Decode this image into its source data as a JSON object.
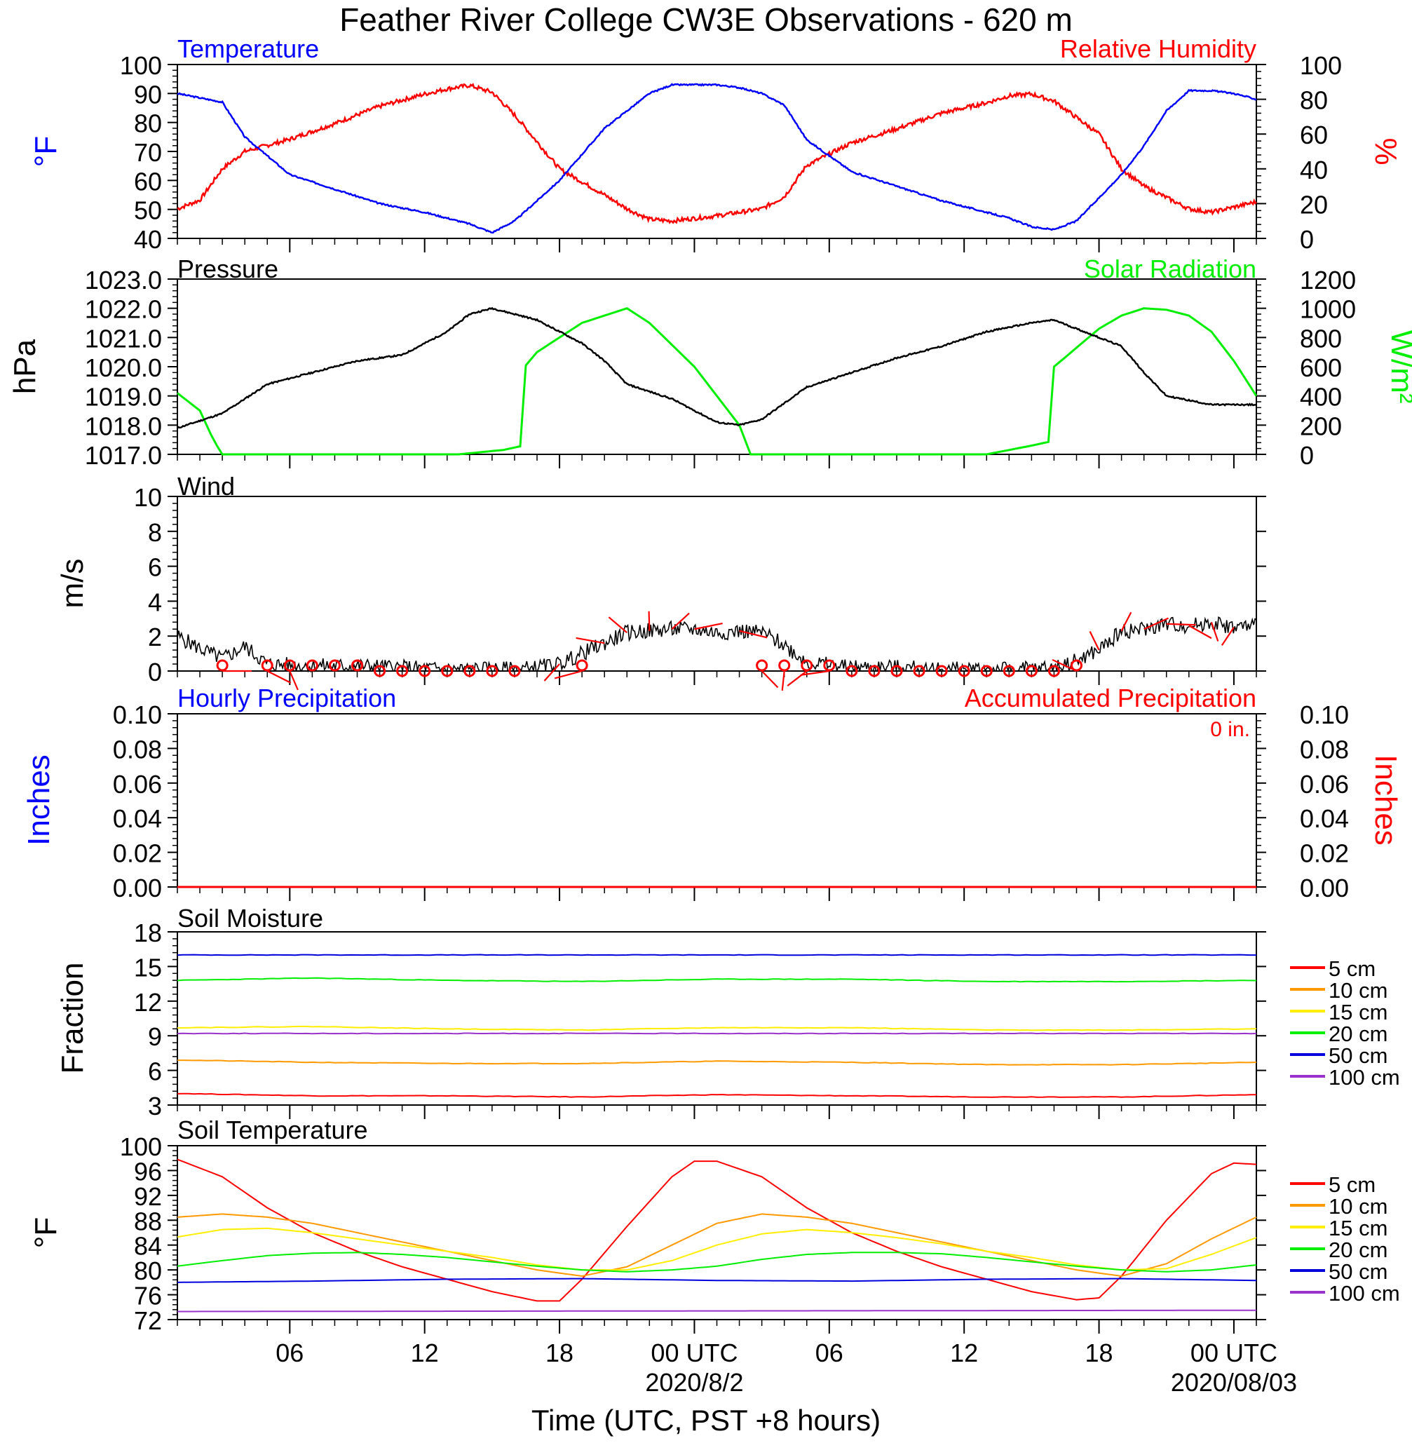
{
  "title": "Feather River College CW3E Observations - 620 m",
  "xlabel": "Time (UTC, PST +8 hours)",
  "x_range": [
    "2020-08-01 01:00",
    "2020-08-03 01:00"
  ],
  "x_ticks": [
    {
      "t": "2020-08-01 06:00",
      "label": "06"
    },
    {
      "t": "2020-08-01 12:00",
      "label": "12"
    },
    {
      "t": "2020-08-01 18:00",
      "label": "18"
    },
    {
      "t": "2020-08-02 00:00",
      "label": "00 UTC",
      "date": "2020/8/2"
    },
    {
      "t": "2020-08-02 06:00",
      "label": "06"
    },
    {
      "t": "2020-08-02 12:00",
      "label": "12"
    },
    {
      "t": "2020-08-02 18:00",
      "label": "18"
    },
    {
      "t": "2020-08-03 00:00",
      "label": "00 UTC",
      "date": "2020/08/03"
    }
  ],
  "colors": {
    "temperature": "#0000ff",
    "humidity": "#ff0000",
    "pressure": "#000000",
    "solar": "#00ee00",
    "wind": "#000000",
    "barb": "#ff0000",
    "hourly_precip": "#0000ff",
    "accum_precip": "#ff0000"
  },
  "panels": {
    "temp_rh": {
      "left_title": "Temperature",
      "right_title": "Relative Humidity",
      "left_label": "°F",
      "right_label": "%"
    },
    "pressure_solar": {
      "left_title": "Pressure",
      "right_title": "Solar Radiation",
      "left_label": "hPa",
      "right_label": "W/m²"
    },
    "wind": {
      "left_title": "Wind",
      "left_label": "m/s"
    },
    "precip": {
      "left_title": "Hourly Precipitation",
      "right_title": "Accumulated Precipitation",
      "left_label": "Inches",
      "right_label": "Inches",
      "accum_text": "0 in."
    },
    "soil_moisture": {
      "left_title": "Soil Moisture",
      "left_label": "Fraction"
    },
    "soil_temp": {
      "left_title": "Soil Temperature",
      "left_label": "°F"
    }
  },
  "legend": [
    {
      "label": "5 cm",
      "color": "#ff0000"
    },
    {
      "label": "10 cm",
      "color": "#ff9900"
    },
    {
      "label": "15 cm",
      "color": "#ffee00"
    },
    {
      "label": "20 cm",
      "color": "#00ee00"
    },
    {
      "label": "50 cm",
      "color": "#0000dd"
    },
    {
      "label": "100 cm",
      "color": "#9933cc"
    }
  ],
  "chart_data": [
    {
      "type": "line",
      "title": "Temperature",
      "ylabel": "°F",
      "ylim": [
        40,
        100
      ],
      "yticks": [
        "40",
        "50",
        "60",
        "70",
        "80",
        "90",
        "100"
      ],
      "series": [
        {
          "name": "Temperature",
          "axis": "left",
          "x_hours": [
            0,
            2,
            3,
            5,
            7,
            9,
            11,
            13,
            14,
            15,
            17,
            19,
            21,
            22,
            23,
            24,
            25,
            26,
            27,
            28,
            30,
            32,
            34,
            36,
            37,
            38,
            39,
            40,
            42,
            43,
            44,
            45,
            46,
            47,
            48
          ],
          "values": [
            90,
            87,
            75,
            62,
            57,
            52,
            49,
            45,
            42,
            46,
            60,
            78,
            90,
            93,
            93,
            93,
            92,
            90,
            86,
            74,
            63,
            58,
            53,
            49,
            47,
            44,
            43,
            46,
            62,
            72,
            84,
            91,
            91,
            90,
            88
          ]
        }
      ]
    },
    {
      "type": "line",
      "title": "Relative Humidity",
      "ylabel": "%",
      "ylim": [
        0,
        100
      ],
      "yticks": [
        "0",
        "20",
        "40",
        "60",
        "80",
        "100"
      ],
      "series": [
        {
          "name": "Relative Humidity",
          "axis": "right",
          "x_hours": [
            0,
            1,
            2,
            3,
            5,
            7,
            9,
            11,
            12,
            13,
            14,
            15,
            17,
            19,
            20,
            21,
            22,
            24,
            26,
            27,
            28,
            30,
            32,
            34,
            36,
            37,
            38,
            39,
            41,
            42,
            43,
            45,
            46,
            48
          ],
          "values": [
            17,
            22,
            40,
            50,
            57,
            66,
            76,
            83,
            86,
            88,
            84,
            71,
            40,
            25,
            17,
            11,
            10,
            13,
            17,
            24,
            42,
            55,
            63,
            72,
            78,
            82,
            83,
            79,
            60,
            40,
            30,
            17,
            15,
            21
          ]
        }
      ]
    },
    {
      "type": "line",
      "title": "Pressure",
      "ylabel": "hPa",
      "ylim": [
        1017,
        1023
      ],
      "yticks": [
        "1017.0",
        "1018.0",
        "1019.0",
        "1020.0",
        "1021.0",
        "1022.0",
        "1023.0"
      ],
      "series": [
        {
          "name": "Pressure",
          "axis": "left",
          "x_hours": [
            0,
            2,
            4,
            6,
            8,
            10,
            12,
            13,
            14,
            16,
            18,
            19,
            20,
            22,
            24,
            25,
            26,
            28,
            30,
            32,
            34,
            36,
            38,
            39,
            40,
            42,
            43,
            44,
            46,
            48
          ],
          "values": [
            1017.9,
            1018.4,
            1019.4,
            1019.8,
            1020.2,
            1020.4,
            1021.2,
            1021.8,
            1022.0,
            1021.6,
            1020.8,
            1020.2,
            1019.4,
            1018.9,
            1018.1,
            1018.0,
            1018.2,
            1019.3,
            1019.8,
            1020.3,
            1020.7,
            1021.2,
            1021.5,
            1021.6,
            1021.3,
            1020.7,
            1019.8,
            1019.0,
            1018.7,
            1018.7
          ]
        }
      ]
    },
    {
      "type": "line",
      "title": "Solar Radiation",
      "ylabel": "W/m²",
      "ylim": [
        0,
        1200
      ],
      "yticks": [
        "0",
        "200",
        "400",
        "600",
        "800",
        "1000",
        "1200"
      ],
      "series": [
        {
          "name": "Solar Radiation",
          "axis": "right",
          "x_hours": [
            0,
            1,
            1.6,
            2,
            12.5,
            14.5,
            15.4,
            15.45,
            16,
            18,
            19,
            20,
            21,
            23,
            25,
            25.5,
            26,
            36,
            38,
            38.9,
            39,
            41,
            42,
            43,
            44,
            45,
            46,
            47,
            48
          ],
          "values": [
            420,
            300,
            100,
            0,
            0,
            30,
            60,
            600,
            700,
            900,
            950,
            1000,
            900,
            600,
            200,
            0,
            0,
            0,
            60,
            90,
            600,
            860,
            950,
            1000,
            990,
            950,
            840,
            640,
            400
          ]
        }
      ]
    },
    {
      "type": "line",
      "title": "Wind",
      "ylabel": "m/s",
      "ylim": [
        0,
        10
      ],
      "yticks": [
        "0",
        "2",
        "4",
        "6",
        "8",
        "10"
      ],
      "series": [
        {
          "name": "Wind",
          "x_hours": [
            0,
            1,
            2,
            3,
            4,
            6,
            8,
            10,
            12,
            14,
            15,
            16,
            17,
            18,
            19,
            20,
            21,
            22,
            23,
            24,
            25,
            26,
            27,
            28,
            30,
            32,
            34,
            36,
            38,
            39,
            40,
            41,
            42,
            43,
            44,
            45,
            46,
            47,
            48
          ],
          "values": [
            2.0,
            1.3,
            0.7,
            1.4,
            0.4,
            0.3,
            0.3,
            0.2,
            0.1,
            0.1,
            0.1,
            0.2,
            0.4,
            1.0,
            1.6,
            2.2,
            2.3,
            2.4,
            2.4,
            2.2,
            2.3,
            2.2,
            1.5,
            0.5,
            0.2,
            0.2,
            0.1,
            0.1,
            0.1,
            0.2,
            0.6,
            1.2,
            2.3,
            2.4,
            2.7,
            2.6,
            2.8,
            2.5,
            2.6
          ]
        }
      ],
      "barb_hours": [
        2,
        4,
        5,
        6,
        7,
        8,
        9,
        10,
        11,
        12,
        13,
        14,
        15,
        17,
        18,
        19,
        20,
        21,
        22,
        23,
        25,
        26,
        27,
        28,
        29,
        30,
        31,
        32,
        33,
        34,
        35,
        36,
        37,
        38,
        39,
        40,
        41,
        42,
        43,
        44,
        45,
        46,
        47
      ],
      "calm_hours": [
        2,
        4,
        5,
        6,
        7,
        8,
        9,
        10,
        11,
        12,
        13,
        14,
        15,
        18,
        26,
        27,
        28,
        29,
        30,
        31,
        32,
        33,
        34,
        35,
        36,
        37,
        38,
        39,
        40
      ]
    },
    {
      "type": "line",
      "title": "Hourly Precipitation",
      "ylabel": "Inches",
      "ylim": [
        0,
        0.1
      ],
      "yticks": [
        "0.00",
        "0.02",
        "0.04",
        "0.06",
        "0.08",
        "0.10"
      ],
      "series": [
        {
          "name": "Hourly Precipitation",
          "x_hours": [
            0,
            48
          ],
          "values": [
            0,
            0
          ]
        },
        {
          "name": "Accumulated Precipitation",
          "x_hours": [
            0,
            48
          ],
          "values": [
            0,
            0
          ]
        }
      ]
    },
    {
      "type": "line",
      "title": "Soil Moisture",
      "ylabel": "Fraction",
      "ylim": [
        3,
        18
      ],
      "yticks": [
        "3",
        "6",
        "9",
        "12",
        "15",
        "18"
      ],
      "series": [
        {
          "name": "5 cm",
          "x_hours": [
            0,
            6,
            12,
            18,
            24,
            30,
            36,
            42,
            48
          ],
          "values": [
            4.0,
            3.8,
            3.8,
            3.7,
            3.9,
            3.8,
            3.7,
            3.7,
            3.9
          ]
        },
        {
          "name": "10 cm",
          "x_hours": [
            0,
            6,
            12,
            18,
            24,
            30,
            36,
            42,
            48
          ],
          "values": [
            6.9,
            6.7,
            6.6,
            6.6,
            6.8,
            6.7,
            6.5,
            6.5,
            6.7
          ]
        },
        {
          "name": "15 cm",
          "x_hours": [
            0,
            6,
            12,
            18,
            24,
            30,
            36,
            42,
            48
          ],
          "values": [
            9.7,
            9.8,
            9.6,
            9.5,
            9.7,
            9.7,
            9.5,
            9.5,
            9.6
          ]
        },
        {
          "name": "20 cm",
          "x_hours": [
            0,
            6,
            12,
            18,
            24,
            30,
            36,
            42,
            48
          ],
          "values": [
            13.8,
            14.0,
            13.8,
            13.7,
            13.9,
            13.9,
            13.7,
            13.7,
            13.8
          ]
        },
        {
          "name": "50 cm",
          "x_hours": [
            0,
            6,
            12,
            18,
            24,
            30,
            36,
            42,
            48
          ],
          "values": [
            16.0,
            16.0,
            16.0,
            16.0,
            16.0,
            16.0,
            16.0,
            16.0,
            16.0
          ]
        },
        {
          "name": "100 cm",
          "x_hours": [
            0,
            6,
            12,
            18,
            24,
            30,
            36,
            42,
            48
          ],
          "values": [
            9.2,
            9.2,
            9.2,
            9.2,
            9.2,
            9.2,
            9.2,
            9.2,
            9.2
          ]
        }
      ]
    },
    {
      "type": "line",
      "title": "Soil Temperature",
      "ylabel": "°F",
      "ylim": [
        72,
        100
      ],
      "yticks": [
        "72",
        "76",
        "80",
        "84",
        "88",
        "92",
        "96",
        "100"
      ],
      "series": [
        {
          "name": "5 cm",
          "x_hours": [
            0,
            2,
            4,
            6,
            8,
            10,
            12,
            14,
            16,
            17,
            18,
            20,
            22,
            23,
            24,
            26,
            28,
            30,
            32,
            34,
            36,
            38,
            40,
            41,
            42,
            44,
            46,
            47,
            48
          ],
          "values": [
            97.8,
            95,
            90,
            86,
            83,
            80.5,
            78.5,
            76.5,
            75,
            75,
            78.5,
            87,
            95,
            97.5,
            97.5,
            95,
            90,
            86,
            83,
            80.5,
            78.5,
            76.5,
            75.2,
            75.5,
            79,
            88,
            95.5,
            97.2,
            97
          ]
        },
        {
          "name": "10 cm",
          "x_hours": [
            0,
            2,
            4,
            6,
            8,
            10,
            12,
            14,
            16,
            18,
            20,
            22,
            24,
            26,
            28,
            30,
            32,
            34,
            36,
            38,
            40,
            42,
            44,
            46,
            48
          ],
          "values": [
            88.5,
            89,
            88.5,
            87.5,
            86,
            84.5,
            83,
            81.5,
            80,
            79,
            80.5,
            84,
            87.5,
            89,
            88.5,
            87.5,
            86,
            84.5,
            83,
            81.5,
            80,
            79,
            81,
            85,
            88.5
          ]
        },
        {
          "name": "15 cm",
          "x_hours": [
            0,
            2,
            4,
            6,
            8,
            10,
            12,
            14,
            16,
            18,
            20,
            22,
            24,
            26,
            28,
            30,
            32,
            34,
            36,
            38,
            40,
            42,
            44,
            46,
            48
          ],
          "values": [
            85.3,
            86.5,
            86.7,
            86,
            85,
            84,
            83,
            82,
            80.8,
            80,
            80,
            81.5,
            84,
            85.8,
            86.5,
            86,
            85.2,
            84.2,
            83,
            82,
            80.8,
            80,
            80.2,
            82.5,
            85.2
          ]
        },
        {
          "name": "20 cm",
          "x_hours": [
            0,
            2,
            4,
            6,
            8,
            10,
            12,
            14,
            16,
            18,
            20,
            22,
            24,
            26,
            28,
            30,
            32,
            34,
            36,
            38,
            40,
            42,
            44,
            46,
            48
          ],
          "values": [
            80.6,
            81.5,
            82.3,
            82.7,
            82.8,
            82.5,
            82,
            81.3,
            80.6,
            80,
            79.7,
            80,
            80.6,
            81.7,
            82.5,
            82.8,
            82.8,
            82.6,
            82,
            81.3,
            80.6,
            80,
            79.7,
            80,
            80.8
          ]
        },
        {
          "name": "50 cm",
          "x_hours": [
            0,
            6,
            12,
            18,
            24,
            30,
            36,
            42,
            48
          ],
          "values": [
            78,
            78.2,
            78.5,
            78.6,
            78.3,
            78.2,
            78.5,
            78.6,
            78.3
          ]
        },
        {
          "name": "100 cm",
          "x_hours": [
            0,
            24,
            48
          ],
          "values": [
            73.3,
            73.4,
            73.5
          ]
        }
      ]
    }
  ]
}
